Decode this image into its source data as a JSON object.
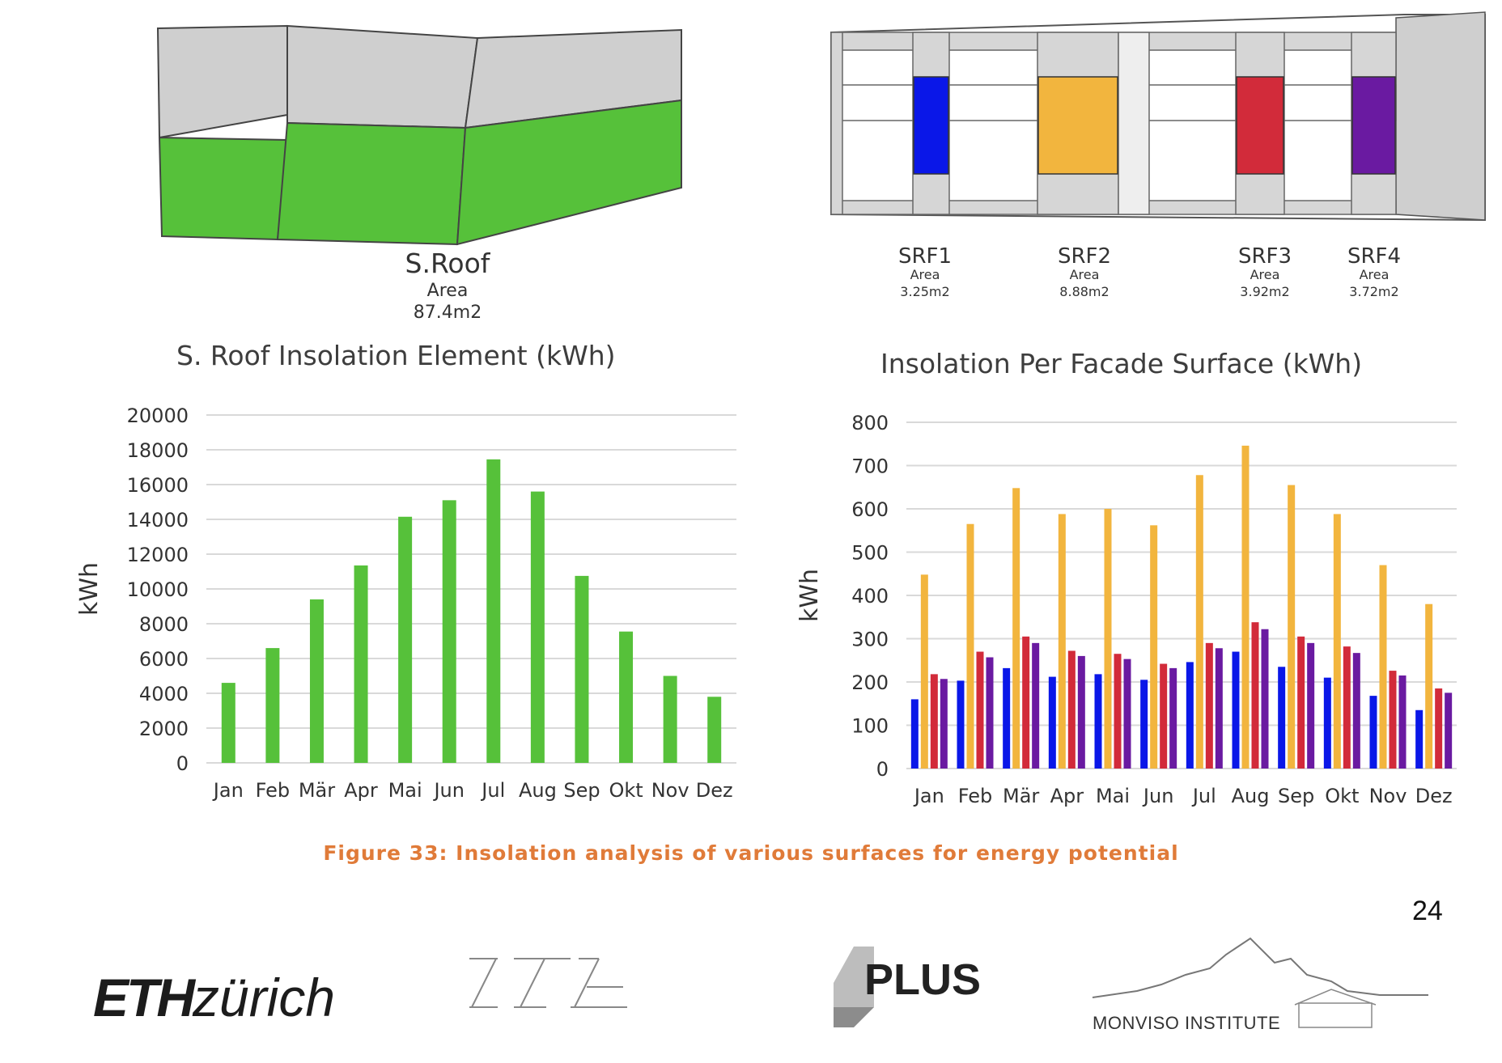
{
  "roof_label": {
    "name": "S.Roof",
    "area_label": "Area",
    "area_value": "87.4m2"
  },
  "facade_labels": [
    {
      "name": "SRF1",
      "area_label": "Area",
      "area_value": "3.25m2"
    },
    {
      "name": "SRF2",
      "area_label": "Area",
      "area_value": "8.88m2"
    },
    {
      "name": "SRF3",
      "area_label": "Area",
      "area_value": "3.92m2"
    },
    {
      "name": "SRF4",
      "area_label": "Area",
      "area_value": "3.72m2"
    }
  ],
  "colors": {
    "roof_green": "#56c13a",
    "roof_gray": "#cfcfcf",
    "srf1": "#0a17e8",
    "srf2": "#f2b53e",
    "srf3": "#d22b3a",
    "srf4": "#6a1aa1",
    "caption": "#e07b39",
    "grid": "#d9d9d9"
  },
  "chart_data": [
    {
      "type": "bar",
      "title": "S. Roof Insolation Element (kWh)",
      "xlabel": "",
      "ylabel": "kWh",
      "ylim": [
        0,
        20000
      ],
      "yticks": [
        0,
        2000,
        4000,
        6000,
        8000,
        10000,
        12000,
        14000,
        16000,
        18000,
        20000
      ],
      "categories": [
        "Jan",
        "Feb",
        "Mär",
        "Apr",
        "Mai",
        "Jun",
        "Jul",
        "Aug",
        "Sep",
        "Okt",
        "Nov",
        "Dez"
      ],
      "series": [
        {
          "color": "#56c13a",
          "values": [
            4600,
            6600,
            9400,
            11350,
            14150,
            15100,
            17450,
            15600,
            10750,
            7550,
            5000,
            3800
          ]
        }
      ],
      "grid": true,
      "legend": "none"
    },
    {
      "type": "bar",
      "title": "Insolation Per Facade Surface (kWh)",
      "xlabel": "",
      "ylabel": "kWh",
      "ylim": [
        0,
        800
      ],
      "yticks": [
        0,
        100,
        200,
        300,
        400,
        500,
        600,
        700,
        800
      ],
      "categories": [
        "Jan",
        "Feb",
        "Mär",
        "Apr",
        "Mai",
        "Jun",
        "Jul",
        "Aug",
        "Sep",
        "Okt",
        "Nov",
        "Dez"
      ],
      "series": [
        {
          "name": "SRF1",
          "color": "#0a17e8",
          "values": [
            160,
            203,
            232,
            212,
            218,
            205,
            246,
            270,
            235,
            210,
            168,
            135
          ]
        },
        {
          "name": "SRF2",
          "color": "#f2b53e",
          "values": [
            448,
            565,
            648,
            588,
            600,
            562,
            678,
            746,
            655,
            588,
            470,
            380
          ]
        },
        {
          "name": "SRF3",
          "color": "#d22b3a",
          "values": [
            218,
            270,
            305,
            272,
            265,
            242,
            290,
            338,
            305,
            282,
            226,
            185
          ]
        },
        {
          "name": "SRF4",
          "color": "#6a1aa1",
          "values": [
            207,
            257,
            290,
            260,
            253,
            232,
            278,
            322,
            290,
            267,
            215,
            175
          ]
        }
      ],
      "grid": true,
      "legend": "none"
    }
  ],
  "caption": "Figure 33: Insolation analysis of various surfaces for energy potential",
  "page_number": "24",
  "logos": {
    "eth_bold": "ETH",
    "eth_regular": "zürich",
    "plus": "PLUS",
    "monviso": "MONVISO INSTITUTE"
  }
}
